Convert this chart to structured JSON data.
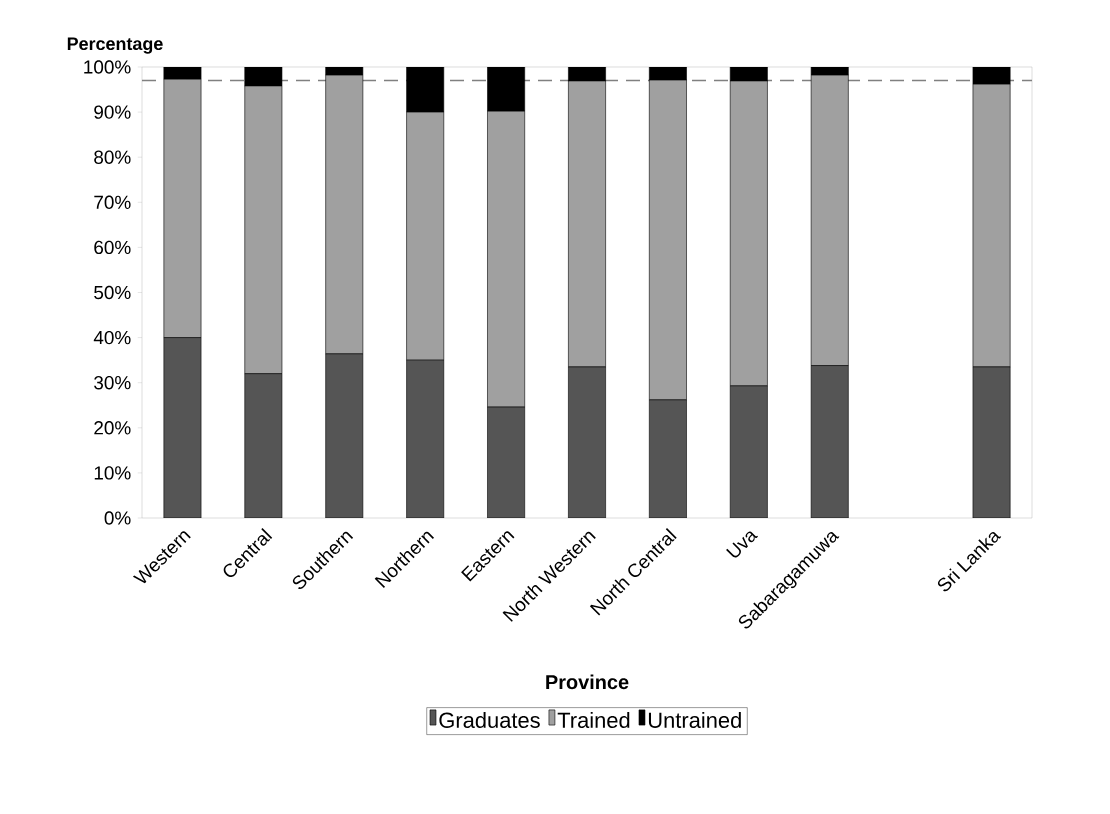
{
  "chart_data": {
    "type": "bar",
    "stacked": true,
    "xlabel": "Province",
    "ylabel": "Percentage",
    "categories": [
      "Western",
      "Central",
      "Southern",
      "Northern",
      "Eastern",
      "North Western",
      "North Central",
      "Uva",
      "Sabaragamuwa",
      null,
      "Sri Lanka"
    ],
    "series": [
      {
        "name": "Graduates",
        "color": "#555555",
        "values": [
          40,
          32,
          36.4,
          35,
          24.6,
          33.5,
          26.2,
          29.3,
          33.8,
          null,
          33.5
        ]
      },
      {
        "name": "Trained",
        "color": "#a0a0a0",
        "values": [
          57.3,
          63.8,
          61.8,
          55,
          65.6,
          63.4,
          70.9,
          67.6,
          64.4,
          null,
          62.7
        ]
      },
      {
        "name": "Untrained",
        "color": "#000000",
        "values": [
          2.7,
          4.2,
          1.8,
          10,
          9.8,
          3.1,
          2.9,
          3.1,
          1.8,
          null,
          3.8
        ]
      }
    ],
    "ylim": [
      0,
      100
    ],
    "yticks": [
      {
        "value": 0,
        "label": "0%"
      },
      {
        "value": 10,
        "label": "10%"
      },
      {
        "value": 20,
        "label": "20%"
      },
      {
        "value": 30,
        "label": "30%"
      },
      {
        "value": 40,
        "label": "40%"
      },
      {
        "value": 50,
        "label": "50%"
      },
      {
        "value": 60,
        "label": "60%"
      },
      {
        "value": 70,
        "label": "70%"
      },
      {
        "value": 80,
        "label": "80%"
      },
      {
        "value": 90,
        "label": "90%"
      },
      {
        "value": 100,
        "label": "100%"
      }
    ],
    "ref_lines": [
      {
        "axis": "y",
        "value": 97,
        "color": "#808080",
        "line_style": "dashed"
      }
    ],
    "legend": "bottom",
    "grid": false
  }
}
